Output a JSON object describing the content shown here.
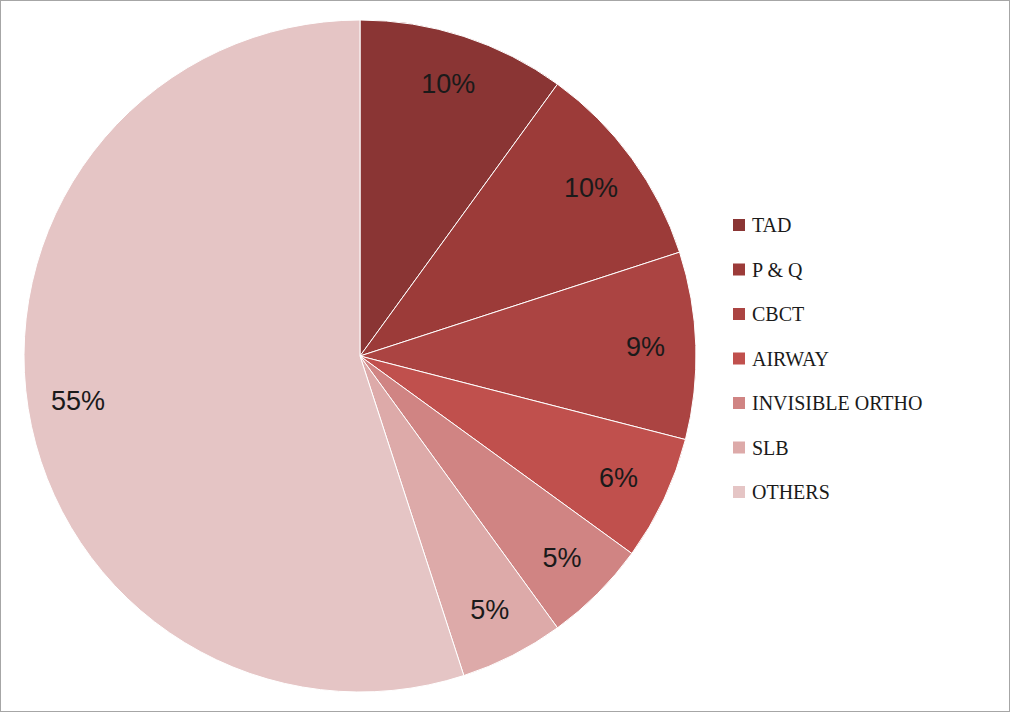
{
  "chart_data": {
    "type": "pie",
    "categories": [
      "TAD",
      "P & Q",
      "CBCT",
      "AIRWAY",
      "INVISIBLE ORTHO",
      "SLB",
      "OTHERS"
    ],
    "values": [
      10,
      10,
      9,
      6,
      5,
      5,
      55
    ],
    "value_labels": [
      "10%",
      "10%",
      "9%",
      "6%",
      "5%",
      "5%",
      "55%"
    ],
    "colors": [
      "#8a3534",
      "#9c3b39",
      "#ab4442",
      "#c0504d",
      "#d08483",
      "#ddaaa9",
      "#e5c5c5"
    ],
    "data_labels": true,
    "legend": "right"
  }
}
